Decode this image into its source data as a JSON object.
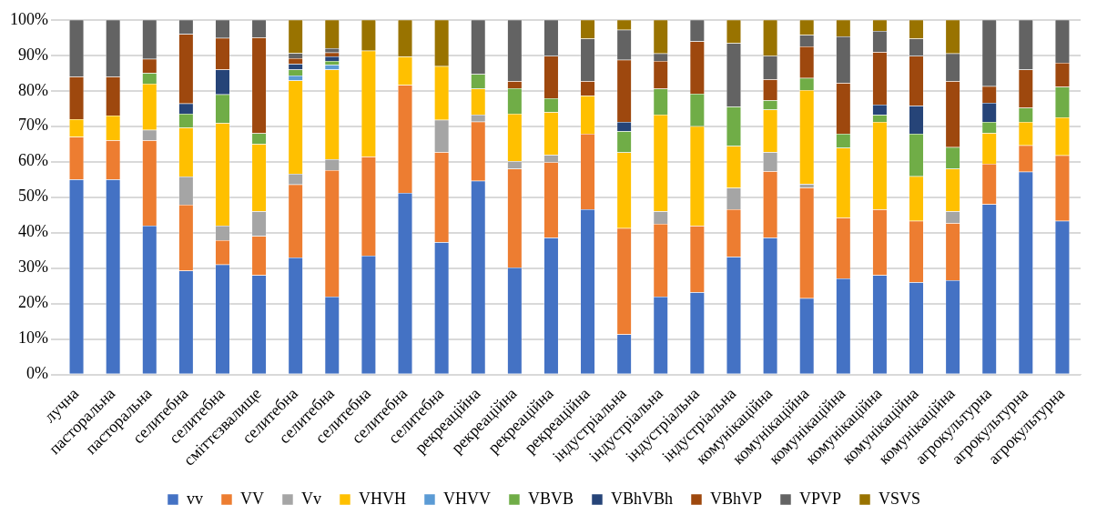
{
  "chart_data": {
    "type": "bar",
    "stacked": true,
    "categories": [
      "лучна",
      "пасторальна",
      "пасторальна",
      "селитебна",
      "селитебна",
      "сміттєзвалище",
      "селитебна",
      "селитебна",
      "селитебна",
      "селитебна",
      "селитебна",
      "рекреаційна",
      "рекреаційна",
      "рекреаційна",
      "рекреаційна",
      "індустріальна",
      "індустріальна",
      "індустріальна",
      "індустріальна",
      "комунікаційна",
      "комунікаційна",
      "комунікаційна",
      "комунікаційна",
      "комунікаційна",
      "комунікаційна",
      "агрокультурна",
      "агрокультурна",
      "агрокультурна"
    ],
    "series": [
      {
        "name": "vv",
        "color": "#4472c4",
        "values": [
          55,
          55,
          42,
          29.3,
          31,
          28,
          33,
          22,
          33.5,
          51.2,
          37.3,
          54.6,
          30.2,
          38.6,
          46.6,
          11.3,
          22,
          23.2,
          33.2,
          38.6,
          21.5,
          27.1,
          28,
          26,
          26.6,
          48,
          57.2,
          43.3
        ]
      },
      {
        "name": "VV",
        "color": "#ed7d31",
        "values": [
          12,
          11,
          24,
          18.6,
          6.9,
          11,
          20.6,
          35.6,
          27.9,
          30.4,
          25.4,
          16.7,
          27.8,
          21.3,
          21.3,
          30,
          20.5,
          18.7,
          13.4,
          18.7,
          31.2,
          17.1,
          18.5,
          17.3,
          16.1,
          11.4,
          7.4,
          18.5
        ]
      },
      {
        "name": "Vv",
        "color": "#a5a5a5",
        "values": [
          0,
          0,
          3,
          7.9,
          4.1,
          7,
          3,
          3.1,
          0,
          0,
          9.1,
          2,
          2.1,
          2,
          0,
          0,
          3.5,
          0,
          6,
          5.4,
          1,
          0,
          0,
          0,
          3.3,
          0,
          0,
          0
        ]
      },
      {
        "name": "VHVH",
        "color": "#ffc000",
        "values": [
          5,
          7,
          13,
          13.8,
          28.9,
          19,
          26.3,
          25.3,
          29.9,
          8,
          15.1,
          7.3,
          13.4,
          12.1,
          10.7,
          21.3,
          27.3,
          28.1,
          11.8,
          12,
          26.5,
          19.7,
          24.7,
          12.6,
          12,
          8.7,
          6.6,
          10.7
        ]
      },
      {
        "name": "VHVV",
        "color": "#5b9bd5",
        "values": [
          0,
          0,
          0,
          0,
          0,
          0,
          1.4,
          1.3,
          0,
          0,
          0,
          0,
          0,
          0,
          0,
          0,
          0,
          0,
          0,
          0,
          0,
          0,
          0,
          0,
          0,
          0,
          0,
          0
        ]
      },
      {
        "name": "VBVB",
        "color": "#70ad47",
        "values": [
          0,
          0,
          3,
          3.9,
          8.1,
          3,
          1.7,
          1.1,
          0,
          0,
          0,
          4.1,
          7.2,
          3.9,
          0,
          6,
          7.3,
          9.2,
          11.1,
          2.6,
          3.4,
          4,
          2,
          12,
          6.1,
          3.1,
          4,
          8.6
        ]
      },
      {
        "name": "VBhVBh",
        "color": "#264478",
        "values": [
          0,
          0,
          0,
          2.9,
          7,
          0,
          1.6,
          1.3,
          0,
          0,
          0,
          0,
          0,
          0,
          0,
          2.6,
          0,
          0,
          0,
          0,
          0,
          0,
          2.9,
          7.9,
          0,
          5.4,
          0,
          0
        ]
      },
      {
        "name": "VBhVP",
        "color": "#9e480e",
        "values": [
          12,
          11,
          4,
          19.6,
          8.9,
          27,
          1.6,
          1.1,
          0,
          0,
          0,
          0,
          2,
          11.9,
          4.1,
          17.5,
          7.8,
          14.7,
          0,
          5.9,
          8.9,
          14.3,
          14.8,
          14,
          18.6,
          4.7,
          10.8,
          6.8
        ]
      },
      {
        "name": "VPVP",
        "color": "#636363",
        "values": [
          16,
          16,
          11,
          4,
          5.1,
          5,
          1.4,
          1.2,
          0,
          0,
          0,
          15.3,
          17.3,
          10.2,
          12,
          8.5,
          2.1,
          6.1,
          17.9,
          6.6,
          3.2,
          13.1,
          6,
          4.9,
          7.8,
          18.7,
          14,
          12.1
        ]
      },
      {
        "name": "VSVS",
        "color": "#997300",
        "values": [
          0,
          0,
          0,
          0,
          0,
          0,
          9.4,
          8,
          8.7,
          10.4,
          13.1,
          0,
          0,
          0,
          5.3,
          2.8,
          9.5,
          0,
          6.6,
          10.2,
          4.3,
          4.7,
          3.1,
          5.3,
          9.5,
          0,
          0,
          0
        ]
      }
    ],
    "ylim": [
      0,
      100
    ],
    "yticks": [
      {
        "value": 0,
        "label": "0%"
      },
      {
        "value": 10,
        "label": "10%"
      },
      {
        "value": 20,
        "label": "20%"
      },
      {
        "value": 30,
        "label": "30%"
      },
      {
        "value": 40,
        "label": "40%"
      },
      {
        "value": 50,
        "label": "50%"
      },
      {
        "value": 60,
        "label": "60%"
      },
      {
        "value": 70,
        "label": "70%"
      },
      {
        "value": 80,
        "label": "80%"
      },
      {
        "value": 90,
        "label": "90%"
      },
      {
        "value": 100,
        "label": "100%"
      }
    ],
    "grid": "y",
    "legend": "bottom"
  }
}
